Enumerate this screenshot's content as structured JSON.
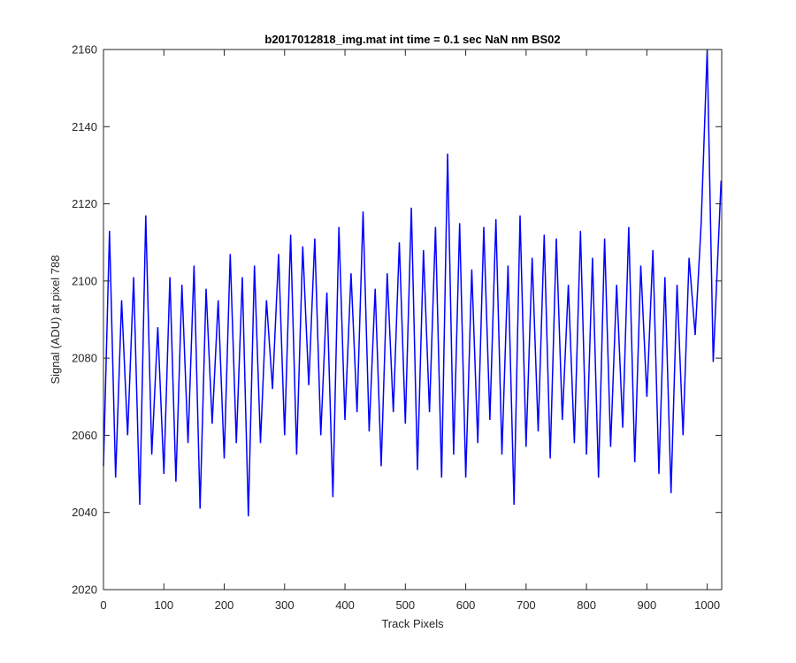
{
  "chart_data": {
    "type": "line",
    "title": "b2017012818_img.mat int time = 0.1 sec  NaN nm BS02",
    "xlabel": "Track Pixels",
    "ylabel": "Signal (ADU) at pixel 788",
    "xlim": [
      0,
      1024
    ],
    "ylim": [
      2020,
      2160
    ],
    "xticks": [
      0,
      100,
      200,
      300,
      400,
      500,
      600,
      700,
      800,
      900,
      1000
    ],
    "yticks": [
      2020,
      2040,
      2060,
      2080,
      2100,
      2120,
      2140,
      2160
    ],
    "grid": false,
    "line_color": "#0000ff",
    "series": [
      {
        "x": [
          0,
          10,
          20,
          30,
          40,
          50,
          60,
          70,
          80,
          90,
          100,
          110,
          120,
          130,
          140,
          150,
          160,
          170,
          180,
          190,
          200,
          210,
          220,
          230,
          240,
          250,
          260,
          270,
          280,
          290,
          300,
          310,
          320,
          330,
          340,
          350,
          360,
          370,
          380,
          390,
          400,
          410,
          420,
          430,
          440,
          450,
          460,
          470,
          480,
          490,
          500,
          510,
          520,
          530,
          540,
          550,
          560,
          570,
          580,
          590,
          600,
          610,
          620,
          630,
          640,
          650,
          660,
          670,
          680,
          690,
          700,
          710,
          720,
          730,
          740,
          750,
          760,
          770,
          780,
          790,
          800,
          810,
          820,
          830,
          840,
          850,
          860,
          870,
          880,
          890,
          900,
          910,
          920,
          930,
          940,
          950,
          960,
          970,
          980,
          990,
          1000,
          1010,
          1023
        ],
        "y": [
          2052,
          2113,
          2049,
          2095,
          2060,
          2101,
          2042,
          2117,
          2055,
          2088,
          2050,
          2101,
          2048,
          2099,
          2058,
          2104,
          2041,
          2098,
          2063,
          2095,
          2054,
          2107,
          2058,
          2101,
          2039,
          2104,
          2058,
          2095,
          2072,
          2107,
          2060,
          2112,
          2055,
          2109,
          2073,
          2111,
          2060,
          2097,
          2044,
          2114,
          2064,
          2102,
          2066,
          2118,
          2061,
          2098,
          2052,
          2102,
          2066,
          2110,
          2063,
          2119,
          2051,
          2108,
          2066,
          2114,
          2049,
          2133,
          2055,
          2115,
          2049,
          2103,
          2058,
          2114,
          2064,
          2116,
          2055,
          2104,
          2042,
          2117,
          2057,
          2106,
          2061,
          2112,
          2054,
          2111,
          2064,
          2099,
          2058,
          2113,
          2055,
          2106,
          2049,
          2111,
          2057,
          2099,
          2062,
          2114,
          2053,
          2104,
          2070,
          2108,
          2050,
          2101,
          2045,
          2099,
          2060,
          2106,
          2086,
          2115,
          2160,
          2079,
          2126
        ]
      }
    ]
  }
}
